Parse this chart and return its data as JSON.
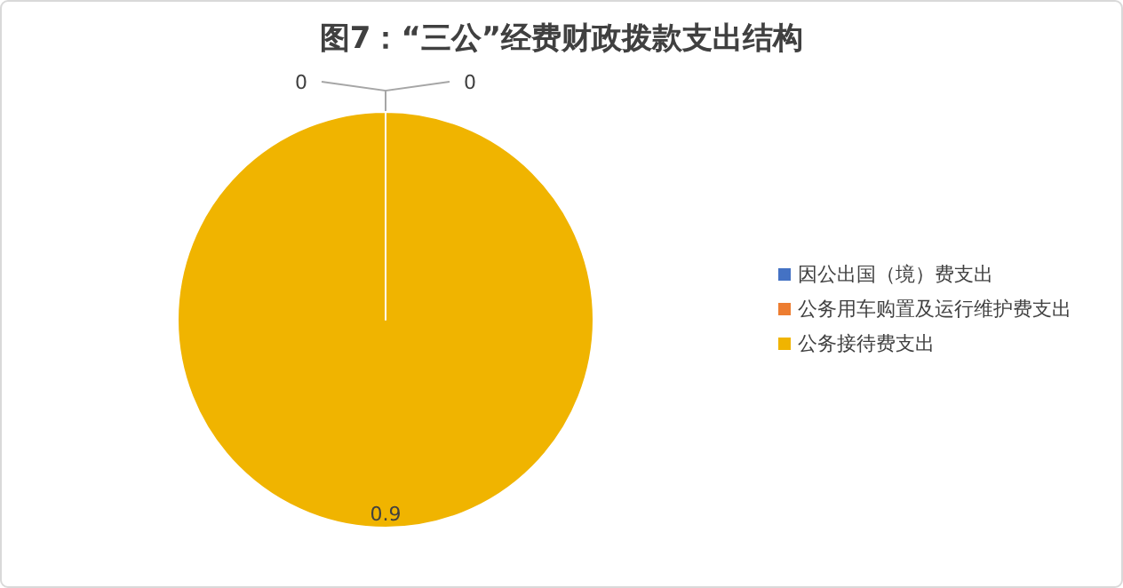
{
  "chart_data": {
    "type": "pie",
    "title": "图7：“三公”经费财政拨款支出结构",
    "categories": [
      "因公出国（境）费支出",
      "公务用车购置及运行维护费支出",
      "公务接待费支出"
    ],
    "values": [
      0,
      0,
      0.9
    ],
    "colors": [
      "#4472c4",
      "#ed7d31",
      "#f0b400"
    ],
    "value_labels": [
      "0",
      "0",
      "0.9"
    ],
    "legend": "right"
  }
}
